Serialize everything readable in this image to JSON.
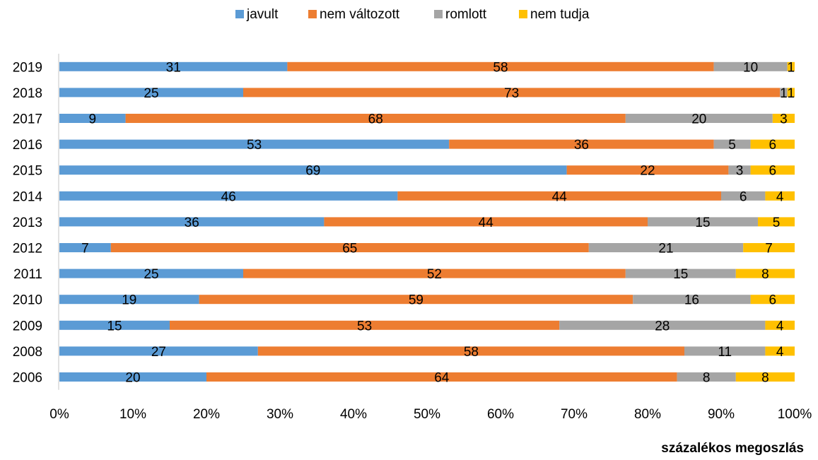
{
  "chart_data": {
    "type": "bar",
    "orientation": "horizontal",
    "stacked": "percent",
    "categories": [
      "2019",
      "2018",
      "2017",
      "2016",
      "2015",
      "2014",
      "2013",
      "2012",
      "2011",
      "2010",
      "2009",
      "2008",
      "2006"
    ],
    "series": [
      {
        "name": "javult",
        "color": "#5B9BD5",
        "values": [
          31,
          25,
          9,
          53,
          69,
          46,
          36,
          7,
          25,
          19,
          15,
          27,
          20
        ]
      },
      {
        "name": "nem változott",
        "color": "#ED7D31",
        "values": [
          58,
          73,
          68,
          36,
          22,
          44,
          44,
          65,
          52,
          59,
          53,
          58,
          64
        ]
      },
      {
        "name": "romlott",
        "color": "#A5A5A5",
        "values": [
          10,
          1,
          20,
          5,
          3,
          6,
          15,
          21,
          15,
          16,
          28,
          11,
          8
        ]
      },
      {
        "name": "nem tudja",
        "color": "#FFC000",
        "values": [
          1,
          1,
          3,
          6,
          6,
          4,
          5,
          7,
          8,
          6,
          4,
          4,
          8
        ]
      }
    ],
    "xticks": [
      "0%",
      "10%",
      "20%",
      "30%",
      "40%",
      "50%",
      "60%",
      "70%",
      "80%",
      "90%",
      "100%"
    ],
    "xlim": [
      0,
      100
    ],
    "xlabel": "százalékos megoszlás",
    "ylabel": "",
    "title": "",
    "legend": "top",
    "grid": false
  }
}
